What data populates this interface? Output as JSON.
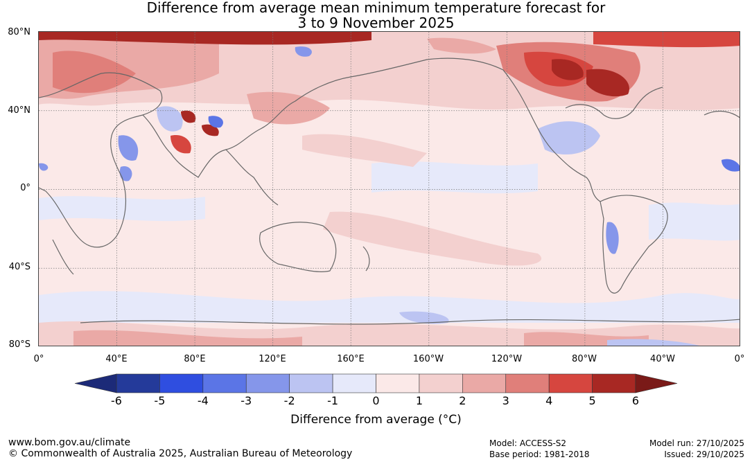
{
  "title": {
    "line1": "Difference from average mean minimum temperature forecast for",
    "line2": "3 to 9 November 2025"
  },
  "map": {
    "lat_labels": [
      "80°N",
      "40°N",
      "0°",
      "40°S",
      "80°S"
    ],
    "lon_labels": [
      "0°",
      "40°E",
      "80°E",
      "120°E",
      "160°E",
      "160°W",
      "120°W",
      "80°W",
      "40°W",
      "0°"
    ]
  },
  "colorbar": {
    "ticks": [
      "-6",
      "-5",
      "-4",
      "-3",
      "-2",
      "-1",
      "0",
      "1",
      "2",
      "3",
      "4",
      "5",
      "6"
    ],
    "colors": [
      "#243a9a",
      "#2f4ee0",
      "#5b75e6",
      "#8596ea",
      "#bcc4f2",
      "#e6e9fa",
      "#fbe9e8",
      "#f3d0cf",
      "#eaa9a6",
      "#e07f7a",
      "#d6463f",
      "#a82823"
    ],
    "low_extend_color": "#1c2a78",
    "high_extend_color": "#7a1a18",
    "label": "Difference from average (°C)"
  },
  "footer": {
    "website": "www.bom.gov.au/climate",
    "copyright": "© Commonwealth of Australia 2025, Australian Bureau of Meteorology",
    "model": "Model: ACCESS-S2",
    "base_period": "Base period: 1981-2018",
    "model_run": "Model run: 27/10/2025",
    "issued": "Issued: 29/10/2025"
  }
}
